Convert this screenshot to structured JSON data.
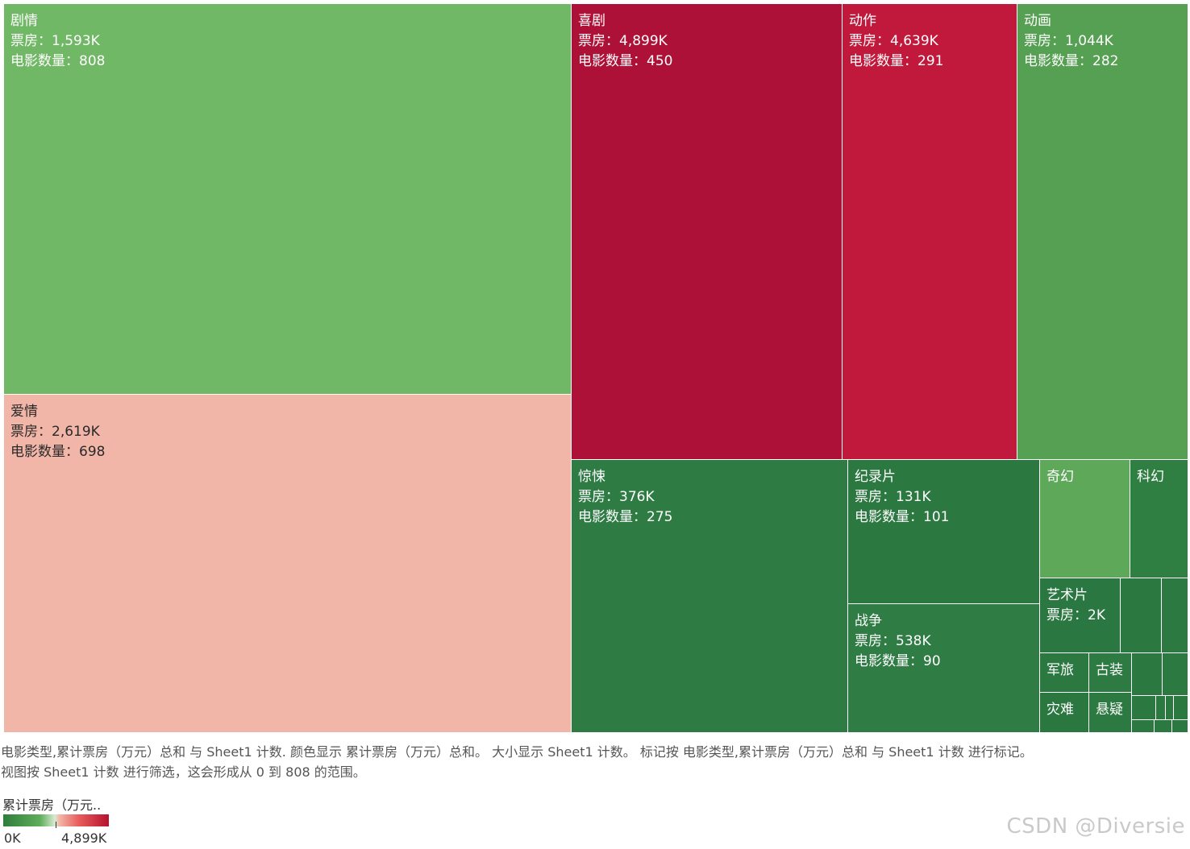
{
  "chart_data": {
    "type": "treemap",
    "size_measure": "Sheet1 计数",
    "color_measure": "累计票房（万元）总和",
    "box_office_label": "票房：",
    "count_label": "电影数量：",
    "items": [
      {
        "name": "剧情",
        "box_office": "1,593K",
        "count": "808",
        "color": "#71b866"
      },
      {
        "name": "爱情",
        "box_office": "2,619K",
        "count": "698",
        "color": "#f1b6a8"
      },
      {
        "name": "喜剧",
        "box_office": "4,899K",
        "count": "450",
        "color": "#ae1137"
      },
      {
        "name": "动作",
        "box_office": "4,639K",
        "count": "291",
        "color": "#c0193c"
      },
      {
        "name": "动画",
        "box_office": "1,044K",
        "count": "282",
        "color": "#55a052"
      },
      {
        "name": "惊悚",
        "box_office": "376K",
        "count": "275",
        "color": "#2e7c44"
      },
      {
        "name": "纪录片",
        "box_office": "131K",
        "count": "101",
        "color": "#2b7840"
      },
      {
        "name": "战争",
        "box_office": "538K",
        "count": "90",
        "color": "#2f7d44"
      },
      {
        "name": "奇幻",
        "box_office": "",
        "count": "",
        "color": "#5ea85a"
      },
      {
        "name": "科幻",
        "box_office": "",
        "count": "",
        "color": "#2f7f42"
      },
      {
        "name": "艺术片",
        "box_office": "2K",
        "count": "",
        "color": "#2a7741"
      },
      {
        "name": "",
        "box_office": "",
        "count": "",
        "color": "#2b7841"
      },
      {
        "name": "",
        "box_office": "",
        "count": "",
        "color": "#2c7a42"
      },
      {
        "name": "军旅",
        "box_office": "",
        "count": "",
        "color": "#2b7841"
      },
      {
        "name": "古装",
        "box_office": "",
        "count": "",
        "color": "#2d7b43"
      },
      {
        "name": "",
        "box_office": "",
        "count": "",
        "color": "#2b7841"
      },
      {
        "name": "",
        "box_office": "",
        "count": "",
        "color": "#2c7942"
      },
      {
        "name": "灾难",
        "box_office": "",
        "count": "",
        "color": "#2a7740"
      },
      {
        "name": "悬疑",
        "box_office": "",
        "count": "",
        "color": "#2c7942"
      },
      {
        "name": "",
        "box_office": "",
        "count": "",
        "color": "#2b7841"
      },
      {
        "name": "",
        "box_office": "",
        "count": "",
        "color": "#2b7841"
      },
      {
        "name": "",
        "box_office": "",
        "count": "",
        "color": "#2b7841"
      },
      {
        "name": "",
        "box_office": "",
        "count": "",
        "color": "#2b7841"
      },
      {
        "name": "",
        "box_office": "",
        "count": "",
        "color": "#2b7841"
      },
      {
        "name": "",
        "box_office": "",
        "count": "",
        "color": "#2b7841"
      },
      {
        "name": "",
        "box_office": "",
        "count": "",
        "color": "#2b7841"
      }
    ]
  },
  "caption": {
    "line1": "电影类型,累计票房（万元）总和 与 Sheet1 计数. 颜色显示 累计票房（万元）总和。 大小显示 Sheet1 计数。 标记按 电影类型,累计票房（万元）总和 与 Sheet1 计数 进行标记。",
    "line2": "视图按 Sheet1 计数 进行筛选，这会形成从 0 到 808 的范围。"
  },
  "legend": {
    "title": "累计票房（万元..",
    "min_label": "0K",
    "max_label": "4,899K",
    "low_color": "#2f7d3c",
    "high_color": "#b5122e"
  },
  "watermark": "CSDN @Diversie"
}
